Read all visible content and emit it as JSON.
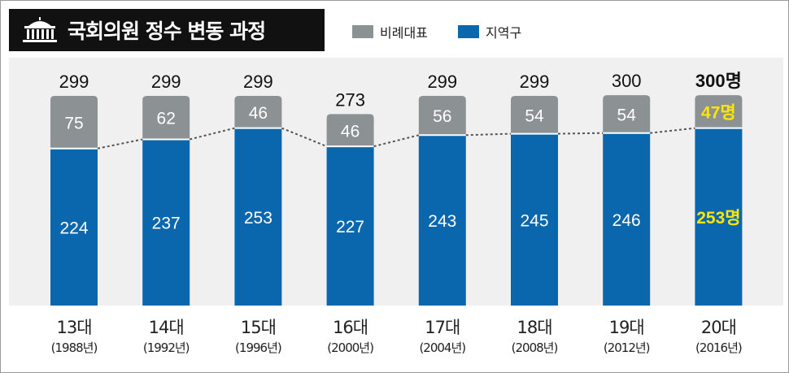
{
  "title": "국회의원 정수 변동 과정",
  "legend": [
    {
      "name": "비례대표",
      "color": "#8c9294"
    },
    {
      "name": "지역구",
      "color": "#0b67ad"
    }
  ],
  "chart_data": {
    "type": "bar",
    "stacked": true,
    "categories": [
      "13대",
      "14대",
      "15대",
      "16대",
      "17대",
      "18대",
      "19대",
      "20대"
    ],
    "years": [
      "(1988년)",
      "(1992년)",
      "(1996년)",
      "(2000년)",
      "(2004년)",
      "(2008년)",
      "(2012년)",
      "(2016년)"
    ],
    "series": [
      {
        "name": "지역구",
        "values": [
          224,
          237,
          253,
          227,
          243,
          245,
          246,
          253
        ],
        "color": "#0b67ad"
      },
      {
        "name": "비례대표",
        "values": [
          75,
          62,
          46,
          46,
          56,
          54,
          54,
          47
        ],
        "color": "#8c9294"
      }
    ],
    "totals": [
      299,
      299,
      299,
      273,
      299,
      299,
      300,
      300
    ],
    "value_labels": {
      "지역구": [
        "224",
        "237",
        "253",
        "227",
        "243",
        "245",
        "246",
        "253명"
      ],
      "비례대표": [
        "75",
        "62",
        "46",
        "46",
        "56",
        "54",
        "54",
        "47명"
      ],
      "totals": [
        "299",
        "299",
        "299",
        "273",
        "299",
        "299",
        "300",
        "300명"
      ]
    },
    "highlight_color": "#ffe600",
    "ylim": [
      0,
      300
    ]
  }
}
